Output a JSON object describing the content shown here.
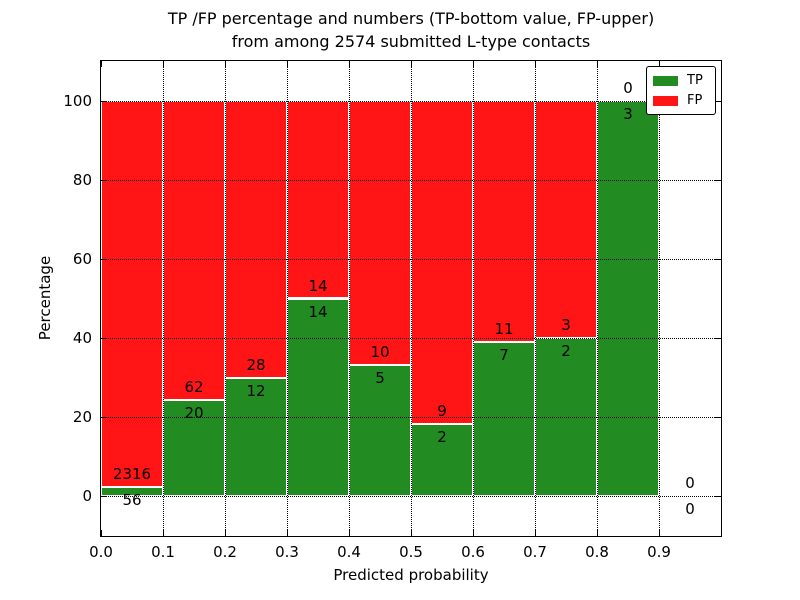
{
  "title": {
    "line1": "TP /FP percentage and numbers (TP-bottom value, FP-upper)",
    "line2": "from among 2574 submitted L-type contacts"
  },
  "axes": {
    "xlabel": "Predicted probability",
    "ylabel": "Percentage"
  },
  "legend": {
    "items": [
      {
        "label": "TP",
        "color": "#228b22"
      },
      {
        "label": "FP",
        "color": "#ff1515"
      }
    ]
  },
  "chart_data": {
    "type": "bar",
    "stacked": true,
    "title": "TP /FP percentage and numbers (TP-bottom value, FP-upper) from among 2574 submitted L-type contacts",
    "xlabel": "Predicted probability",
    "ylabel": "Percentage",
    "total_contacts": 2574,
    "xlim": [
      0.0,
      1.0
    ],
    "ylim": [
      -10,
      110
    ],
    "x_ticks": [
      0.0,
      0.1,
      0.2,
      0.3,
      0.4,
      0.5,
      0.6,
      0.7,
      0.8,
      0.9
    ],
    "y_ticks": [
      0,
      20,
      40,
      60,
      80,
      100
    ],
    "grid": "dotted, drawn above bars",
    "legend_position": "upper right",
    "colors": {
      "tp": "#228b22",
      "fp": "#ff1515",
      "bar_edge": "#ffffff"
    },
    "bins": [
      {
        "range": [
          0.0,
          0.1
        ],
        "tp": 56,
        "fp": 2316,
        "tp_pct": 2.4,
        "fp_pct": 97.6
      },
      {
        "range": [
          0.1,
          0.2
        ],
        "tp": 20,
        "fp": 62,
        "tp_pct": 24.4,
        "fp_pct": 75.6
      },
      {
        "range": [
          0.2,
          0.3
        ],
        "tp": 12,
        "fp": 28,
        "tp_pct": 30.0,
        "fp_pct": 70.0
      },
      {
        "range": [
          0.3,
          0.4
        ],
        "tp": 14,
        "fp": 14,
        "tp_pct": 50.0,
        "fp_pct": 50.0
      },
      {
        "range": [
          0.4,
          0.5
        ],
        "tp": 5,
        "fp": 10,
        "tp_pct": 33.3,
        "fp_pct": 66.7
      },
      {
        "range": [
          0.5,
          0.6
        ],
        "tp": 2,
        "fp": 9,
        "tp_pct": 18.2,
        "fp_pct": 81.8
      },
      {
        "range": [
          0.6,
          0.7
        ],
        "tp": 7,
        "fp": 11,
        "tp_pct": 38.9,
        "fp_pct": 61.1
      },
      {
        "range": [
          0.7,
          0.8
        ],
        "tp": 2,
        "fp": 3,
        "tp_pct": 40.0,
        "fp_pct": 60.0
      },
      {
        "range": [
          0.8,
          0.9
        ],
        "tp": 3,
        "fp": 0,
        "tp_pct": 100.0,
        "fp_pct": 0.0
      },
      {
        "range": [
          0.9,
          1.0
        ],
        "tp": 0,
        "fp": 0,
        "tp_pct": 0.0,
        "fp_pct": 0.0
      }
    ]
  }
}
